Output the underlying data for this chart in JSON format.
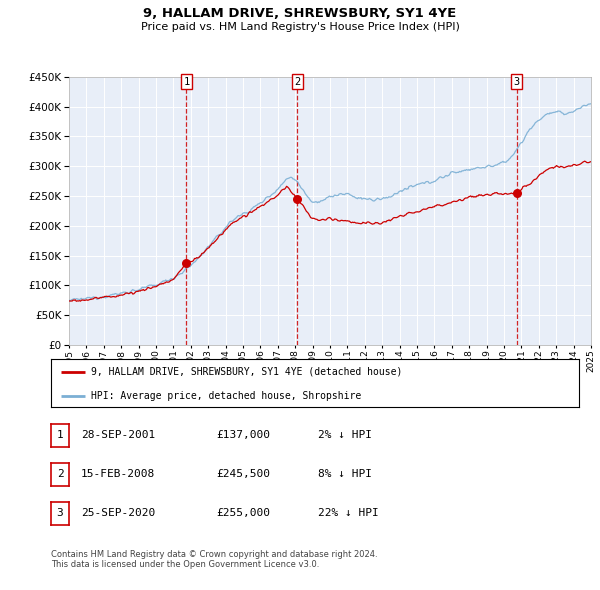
{
  "title": "9, HALLAM DRIVE, SHREWSBURY, SY1 4YE",
  "subtitle": "Price paid vs. HM Land Registry's House Price Index (HPI)",
  "legend_line1": "9, HALLAM DRIVE, SHREWSBURY, SY1 4YE (detached house)",
  "legend_line2": "HPI: Average price, detached house, Shropshire",
  "sale_color": "#cc0000",
  "hpi_color": "#7bafd4",
  "background_color": "#e8eef8",
  "transactions": [
    {
      "label": "1",
      "date": "28-SEP-2001",
      "price": 137000,
      "hpi_diff": "2% ↓ HPI"
    },
    {
      "label": "2",
      "date": "15-FEB-2008",
      "price": 245500,
      "hpi_diff": "8% ↓ HPI"
    },
    {
      "label": "3",
      "date": "25-SEP-2020",
      "price": 255000,
      "hpi_diff": "22% ↓ HPI"
    }
  ],
  "footer": "Contains HM Land Registry data © Crown copyright and database right 2024.\nThis data is licensed under the Open Government Licence v3.0.",
  "ylim": [
    0,
    450000
  ],
  "yticks": [
    0,
    50000,
    100000,
    150000,
    200000,
    250000,
    300000,
    350000,
    400000,
    450000
  ],
  "x_start_year": 1995,
  "x_end_year": 2025,
  "vline_years": [
    2001.75,
    2008.12,
    2020.73
  ],
  "sale_prices_at_vlines": [
    137000,
    245500,
    255000
  ]
}
